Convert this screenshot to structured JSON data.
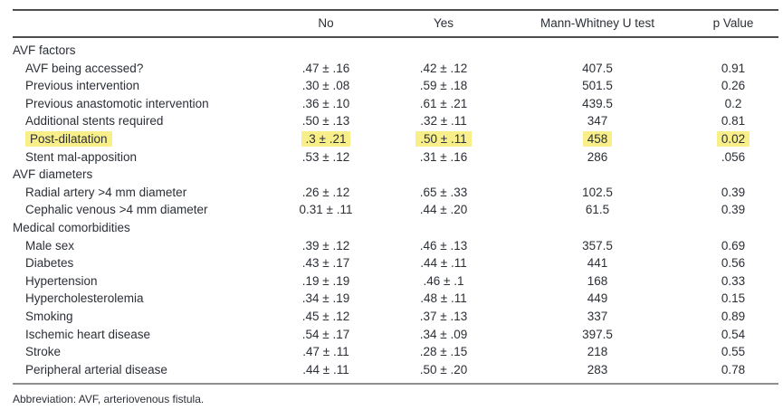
{
  "table": {
    "columns": {
      "label": "",
      "no": "No",
      "yes": "Yes",
      "u": "Mann-Whitney U test",
      "p": "p Value"
    },
    "highlight_color": "#f9ef8a",
    "text_color": "#2b2f36",
    "rule_color_dark": "#4e4e4e",
    "rule_color_light": "#8f8f8f",
    "rows": [
      {
        "type": "section",
        "label": "AVF factors"
      },
      {
        "type": "data",
        "label": "AVF being accessed?",
        "no": ".47 ± .16",
        "yes": ".42 ± .12",
        "u": "407.5",
        "p": "0.91"
      },
      {
        "type": "data",
        "label": "Previous intervention",
        "no": ".30 ± .08",
        "yes": ".59 ± .18",
        "u": "501.5",
        "p": "0.26"
      },
      {
        "type": "data",
        "label": "Previous anastomotic intervention",
        "no": ".36 ± .10",
        "yes": ".61 ± .21",
        "u": "439.5",
        "p": "0.2"
      },
      {
        "type": "data",
        "label": "Additional stents required",
        "no": ".50 ± .13",
        "yes": ".32 ± .11",
        "u": "347",
        "p": "0.81"
      },
      {
        "type": "data",
        "label": "Post-dilatation",
        "no": ".3 ± .21",
        "yes": ".50 ± .11",
        "u": "458",
        "p": "0.02",
        "highlighted": true
      },
      {
        "type": "data",
        "label": "Stent mal-apposition",
        "no": ".53 ± .12",
        "yes": ".31 ± .16",
        "u": "286",
        "p": ".056"
      },
      {
        "type": "section",
        "label": "AVF diameters"
      },
      {
        "type": "data",
        "label": "Radial artery >4 mm diameter",
        "no": ".26 ± .12",
        "yes": ".65 ± .33",
        "u": "102.5",
        "p": "0.39"
      },
      {
        "type": "data",
        "label": "Cephalic venous >4 mm diameter",
        "no": "0.31 ± .11",
        "yes": ".44 ± .20",
        "u": "61.5",
        "p": "0.39"
      },
      {
        "type": "section",
        "label": "Medical comorbidities"
      },
      {
        "type": "data",
        "label": "Male sex",
        "no": ".39 ± .12",
        "yes": ".46 ± .13",
        "u": "357.5",
        "p": "0.69"
      },
      {
        "type": "data",
        "label": "Diabetes",
        "no": ".43 ± .17",
        "yes": ".44 ± .11",
        "u": "441",
        "p": "0.56"
      },
      {
        "type": "data",
        "label": "Hypertension",
        "no": ".19 ± .19",
        "yes": ".46 ± .1",
        "u": "168",
        "p": "0.33"
      },
      {
        "type": "data",
        "label": "Hypercholesterolemia",
        "no": ".34 ± .19",
        "yes": ".48 ± .11",
        "u": "449",
        "p": "0.15"
      },
      {
        "type": "data",
        "label": "Smoking",
        "no": ".45 ± .12",
        "yes": ".37 ± .13",
        "u": "337",
        "p": "0.89"
      },
      {
        "type": "data",
        "label": "Ischemic heart disease",
        "no": ".54 ± .17",
        "yes": ".34 ± .09",
        "u": "397.5",
        "p": "0.54"
      },
      {
        "type": "data",
        "label": "Stroke",
        "no": ".47 ± .11",
        "yes": ".28 ± .15",
        "u": "218",
        "p": "0.55"
      },
      {
        "type": "data",
        "label": "Peripheral arterial disease",
        "no": ".44 ± .11",
        "yes": ".50 ± .20",
        "u": "283",
        "p": "0.78"
      }
    ],
    "footnote": "Abbreviation: AVF, arteriovenous fistula."
  }
}
